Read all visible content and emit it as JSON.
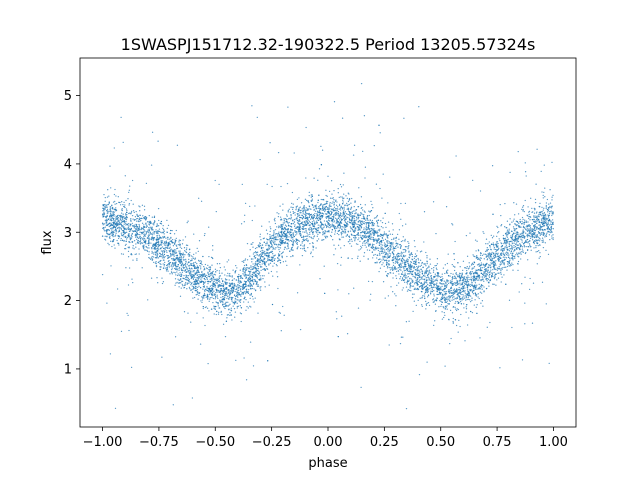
{
  "chart_data": {
    "type": "scatter",
    "title": "1SWASPJ151712.32-190322.5 Period 13205.57324s",
    "xlabel": "phase",
    "ylabel": "flux",
    "xlim": [
      -1.1,
      1.1
    ],
    "ylim": [
      0.15,
      5.55
    ],
    "xticks": [
      -1.0,
      -0.75,
      -0.5,
      -0.25,
      0.0,
      0.25,
      0.5,
      0.75,
      1.0
    ],
    "xtick_labels": [
      "−1.00",
      "−0.75",
      "−0.50",
      "−0.25",
      "0.00",
      "0.25",
      "0.50",
      "0.75",
      "1.00"
    ],
    "yticks": [
      1,
      2,
      3,
      4,
      5
    ],
    "ytick_labels": [
      "1",
      "2",
      "3",
      "4",
      "5"
    ],
    "grid": false,
    "marker_color": "#1f77b4",
    "series": [
      {
        "phase": [
          -1.0,
          -0.9,
          -0.8,
          -0.7,
          -0.6,
          -0.5,
          -0.45,
          -0.4,
          -0.3,
          -0.2,
          -0.1,
          0.0,
          0.1,
          0.2,
          0.3,
          0.4,
          0.5,
          0.55,
          0.6,
          0.7,
          0.8,
          0.9,
          1.0
        ],
        "mean_flux": [
          3.2,
          3.1,
          2.95,
          2.7,
          2.4,
          2.15,
          2.1,
          2.15,
          2.55,
          2.95,
          3.15,
          3.2,
          3.15,
          2.95,
          2.65,
          2.35,
          2.15,
          2.1,
          2.15,
          2.45,
          2.8,
          3.05,
          3.2
        ]
      }
    ]
  }
}
